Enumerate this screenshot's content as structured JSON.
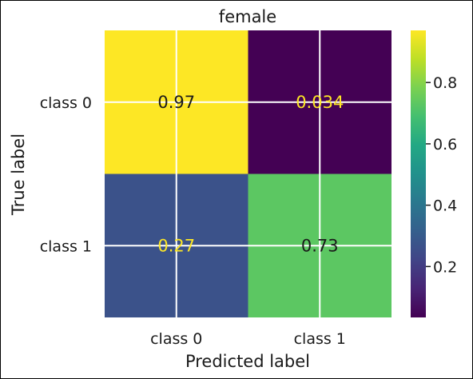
{
  "chart_data": {
    "type": "heatmap",
    "title": "female",
    "xlabel": "Predicted label",
    "ylabel": "True label",
    "x_categories": [
      "class 0",
      "class 1"
    ],
    "y_categories": [
      "class 0",
      "class 1"
    ],
    "values": [
      [
        0.97,
        0.034
      ],
      [
        0.27,
        0.73
      ]
    ],
    "value_labels": [
      [
        "0.97",
        "0.034"
      ],
      [
        "0.27",
        "0.73"
      ]
    ],
    "colormap": "viridis",
    "colorbar": {
      "min": 0.034,
      "max": 0.97,
      "ticks": [
        0.2,
        0.4,
        0.6,
        0.8
      ],
      "tick_labels": [
        "0.2",
        "0.4",
        "0.6",
        "0.8"
      ]
    },
    "grid": true,
    "colors": {
      "high_text": "#1a1a1a",
      "low_text": "#fde725",
      "grid_line": "#ffffff",
      "border": "#000000"
    }
  }
}
